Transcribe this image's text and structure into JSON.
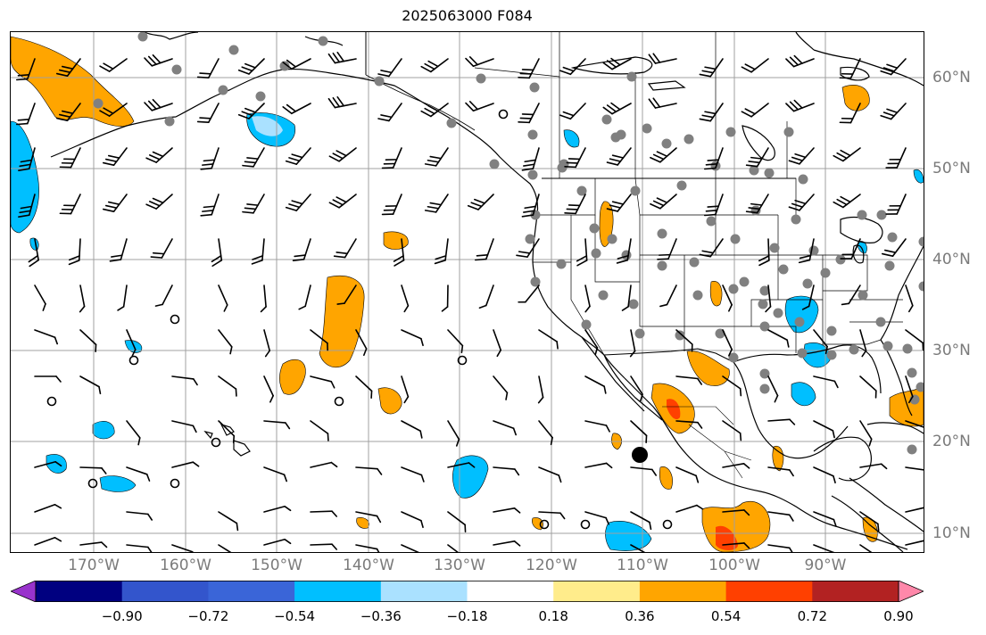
{
  "title": "2025063000 F084",
  "colors": {
    "land_line": "#000000",
    "grid": "#a0a0a0",
    "station": "#808080",
    "neg_fill": "#00bfff",
    "neg_light": "#aae1ff",
    "pos_fill": "#ffa500",
    "pos_strong": "#ff4000",
    "pos_deep": "#ff2200"
  },
  "lon_labels": [
    "170°W",
    "160°W",
    "150°W",
    "140°W",
    "130°W",
    "120°W",
    "110°W",
    "100°W",
    "90°W"
  ],
  "lat_labels": [
    "60°N",
    "50°N",
    "40°N",
    "30°N",
    "20°N",
    "10°N"
  ],
  "colorbar": {
    "colors": [
      "#9933cc",
      "#000080",
      "#3355cc",
      "#3a65d8",
      "#00bfff",
      "#aae1ff",
      "#ffffff",
      "#ffec8b",
      "#ffa500",
      "#ff4000",
      "#b22222",
      "#ff88aa"
    ],
    "ticks": [
      "−0.90",
      "−0.72",
      "−0.54",
      "−0.36",
      "−0.18",
      "0.18",
      "0.36",
      "0.54",
      "0.72",
      "0.90"
    ]
  },
  "icons": [
    "wind-barb-icon",
    "calm-circle-icon",
    "station-dot-icon",
    "storm-center-icon"
  ]
}
